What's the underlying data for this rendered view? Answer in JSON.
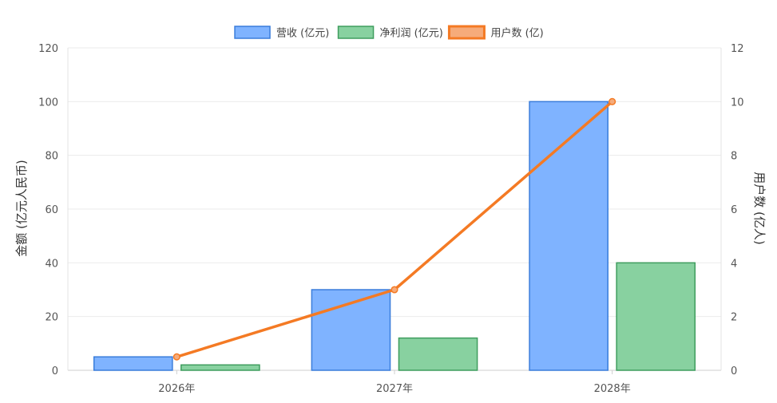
{
  "chart_data": {
    "type": "bar",
    "categories": [
      "2026年",
      "2027年",
      "2028年"
    ],
    "series": [
      {
        "name": "营收 (亿元)",
        "type": "bar",
        "axis": "left",
        "values": [
          5,
          30,
          100
        ],
        "color": "#7fb3ff",
        "border": "#3a7ddb"
      },
      {
        "name": "净利润 (亿元)",
        "type": "bar",
        "axis": "left",
        "values": [
          2,
          12,
          40
        ],
        "color": "#88d1a0",
        "border": "#3f9d5e"
      },
      {
        "name": "用户数 (亿)",
        "type": "line",
        "axis": "right",
        "values": [
          0.5,
          3,
          10
        ],
        "color": "#f47a24",
        "legend_fill": "#f6ab7a"
      }
    ],
    "y_left": {
      "label": "金额 (亿元人民币)",
      "ylim": [
        0,
        120
      ],
      "ticks": [
        "0",
        "20",
        "40",
        "60",
        "80",
        "100",
        "120"
      ]
    },
    "y_right": {
      "label": "用户数 (亿人)",
      "ylim": [
        0,
        12
      ],
      "ticks": [
        "0",
        "2",
        "4",
        "6",
        "8",
        "10",
        "12"
      ]
    },
    "legend_position": "top-center",
    "grid": true
  }
}
